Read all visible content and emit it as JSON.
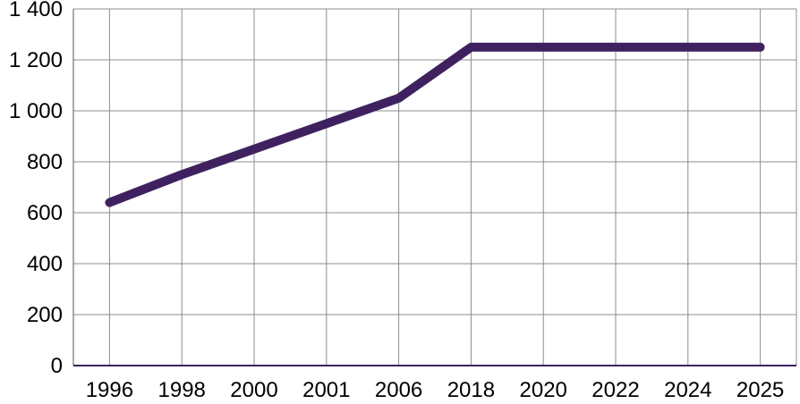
{
  "chart_data": {
    "type": "line",
    "title": "",
    "xlabel": "",
    "ylabel": "",
    "categories": [
      "1996",
      "1998",
      "2000",
      "2001",
      "2006",
      "2018",
      "2020",
      "2022",
      "2024",
      "2025"
    ],
    "y_ticks": [
      "0",
      "200",
      "400",
      "600",
      "800",
      "1 000",
      "1 200",
      "1 400"
    ],
    "ylim": [
      0,
      1400
    ],
    "grid": true,
    "legend": "none",
    "series": [
      {
        "values": [
          640,
          750,
          850,
          950,
          1050,
          1250,
          1250,
          1250,
          1250,
          1250
        ],
        "color": "#3f2160"
      }
    ]
  },
  "colors": {
    "grid": "#8c8c8c",
    "axis": "#3f2160",
    "series": "#3f2160"
  }
}
